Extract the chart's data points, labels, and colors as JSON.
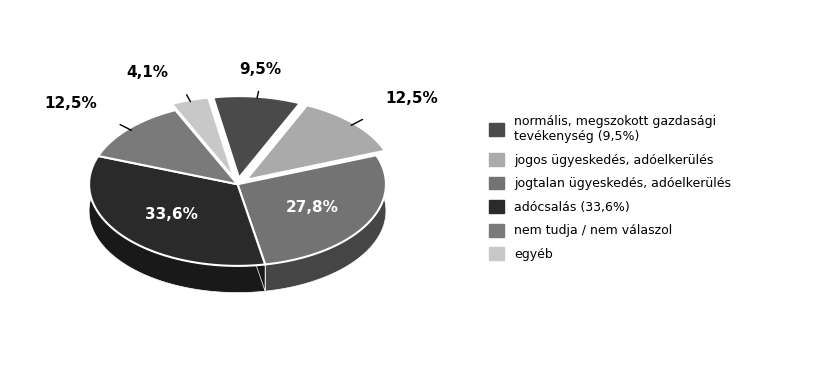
{
  "labels": [
    "normális, megszokott gazdasági\ntevékenység (9,5%)",
    "jogos ügyeskedés, adóelkerülés",
    "jogtalan ügyeskedés, adóelkerülés",
    "adócsalás (33,6%)",
    "nem tudja / nem válaszol",
    "egyéb"
  ],
  "values": [
    9.5,
    12.5,
    27.8,
    33.6,
    12.5,
    4.1
  ],
  "colors": [
    "#4a4a4a",
    "#aaaaaa",
    "#737373",
    "#2a2a2a",
    "#7a7a7a",
    "#c8c8c8"
  ],
  "explode": [
    0.08,
    0.08,
    0.0,
    0.0,
    0.0,
    0.08
  ],
  "pct_labels": [
    "9,5%",
    "12,5%",
    "27,8%",
    "33,6%",
    "12,5%",
    "4,1%"
  ],
  "outside_labels": [
    0,
    1,
    4,
    5
  ],
  "startangle": 105,
  "figure_width": 8.19,
  "figure_height": 3.76,
  "dpi": 100,
  "legend_fontsize": 9,
  "pct_fontsize": 11,
  "background_color": "#ffffff"
}
